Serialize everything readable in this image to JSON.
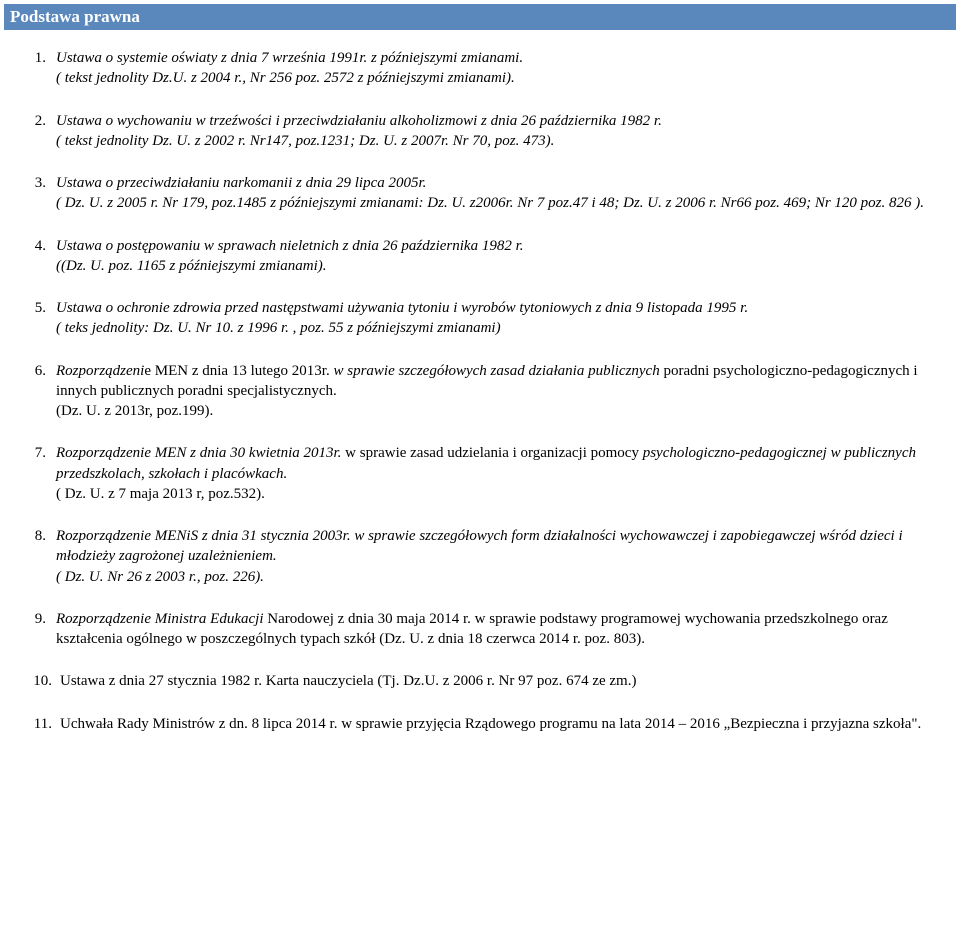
{
  "header": {
    "title": "Podstawa prawna",
    "bg_color": "#5a88bc",
    "text_color": "#ffffff"
  },
  "items": [
    {
      "num": "1.",
      "lines": [
        {
          "text": "Ustawa o systemie oświaty z dnia 7 września 1991r. z późniejszymi zmianami.",
          "italic": true
        },
        {
          "text": "( tekst jednolity Dz.U. z 2004 r., Nr 256 poz. 2572 z późniejszymi zmianami).",
          "italic": true
        }
      ]
    },
    {
      "num": "2.",
      "lines": [
        {
          "text": "Ustawa o wychowaniu w trzeźwości i przeciwdziałaniu alkoholizmowi z dnia 26 października 1982 r.",
          "italic": true
        },
        {
          "text": "( tekst jednolity Dz. U. z 2002 r. Nr147, poz.1231; Dz. U. z 2007r. Nr 70, poz. 473).",
          "italic": true
        }
      ]
    },
    {
      "num": "3.",
      "lines": [
        {
          "text": "Ustawa o przeciwdziałaniu narkomanii z dnia 29 lipca 2005r.",
          "italic": true
        },
        {
          "text": "( Dz. U. z 2005 r. Nr 179, poz.1485 z późniejszymi zmianami: Dz. U. z2006r. Nr 7 poz.47 i 48; Dz. U. z 2006 r. Nr66 poz. 469; Nr 120 poz. 826 ).",
          "italic": true
        }
      ]
    },
    {
      "num": "4.",
      "lines": [
        {
          "text": "Ustawa o postępowaniu w sprawach nieletnich z dnia 26 października 1982 r.",
          "italic": true
        },
        {
          "text": "((Dz. U. poz. 1165 z późniejszymi zmianami).",
          "italic": true
        }
      ]
    },
    {
      "num": "5.",
      "lines": [
        {
          "text": "Ustawa o ochronie zdrowia przed następstwami używania tytoniu i wyrobów tytoniowych z dnia 9 listopada 1995 r.",
          "italic": true
        },
        {
          "text": "( teks jednolity: Dz. U. Nr 10. z 1996 r. , poz. 55 z późniejszymi zmianami)",
          "italic": true
        }
      ]
    },
    {
      "num": "6.",
      "lines": [
        {
          "text": "Rozporządzenie MEN z dnia 13 lutego 2013r. w sprawie szczegółowych zasad działania publicznych poradni psychologiczno-pedagogicznych i innych publicznych poradni specjalistycznych.",
          "italic_first_part": "Rozporządzeni",
          "mix": true,
          "full": "Rozporządzenie MEN z dnia 13 lutego 2013r. w sprawie szczegółowych zasad działania publicznych poradni psychologiczno-pedagogicznych i innych publicznych poradni specjalistycznych."
        },
        {
          "text": "(Dz. U. z 2013r, poz.199).",
          "italic": false
        }
      ]
    },
    {
      "num": "7.",
      "lines": [
        {
          "text": "Rozporządzenie MEN z dnia 30 kwietnia 2013r. w sprawie zasad udzielania i organizacji pomocy psychologiczno-pedagogicznej w publicznych przedszkolach, szkołach i placówkach.",
          "italic_mix": true,
          "italic_part": "Rozporządzenie MEN z dnia 30 kwietnia 2013r.",
          "rest": " w sprawie zasad udzielania i organizacji pomocy psychologiczno-pedagogicznej w publicznych przedszkolach, szkołach i placówkach."
        },
        {
          "text": "( Dz. U. z 7 maja 2013 r, poz.532).",
          "italic": false
        }
      ]
    },
    {
      "num": "8.",
      "lines": [
        {
          "text": "Rozporządzenie MENiS z dnia 31 stycznia 2003r. w sprawie szczegółowych form działalności wychowawczej i zapobiegawczej wśród dzieci i młodzieży zagrożonej uzależnieniem.",
          "italic": true
        },
        {
          "text": "( Dz. U. Nr 26 z 2003 r., poz. 226).",
          "italic": true
        }
      ]
    },
    {
      "num": "9.",
      "lines": [
        {
          "text": "Rozporządzenie Ministra Edukacji Narodowej z dnia 30 maja 2014 r. w sprawie podstawy programowej wychowania przedszkolnego oraz kształcenia ogólnego w poszczególnych typach szkół (Dz. U. z dnia 18 czerwca 2014 r. poz. 803).",
          "italic_mix2": true,
          "italic_part": "Rozporządzenie Ministra Edukacji",
          "rest": " Narodowej z dnia 30 maja 2014 r. w sprawie podstawy programowej wychowania przedszkolnego oraz kształcenia ogólnego w poszczególnych typach szkół (Dz. U. z dnia 18 czerwca 2014 r. poz. 803)."
        }
      ]
    },
    {
      "num": "10.",
      "lines": [
        {
          "text": "Ustawa z dnia 27 stycznia 1982 r. Karta nauczyciela (Tj. Dz.U. z 2006 r. Nr 97 poz. 674 ze zm.)",
          "italic": false
        }
      ],
      "wide": true
    },
    {
      "num": "11.",
      "lines": [
        {
          "text": "Uchwała Rady Ministrów z dn. 8 lipca 2014 r. w sprawie przyjęcia Rządowego programu na lata 2014 – 2016 „Bezpieczna i przyjazna szkoła\".",
          "italic": false
        }
      ],
      "wide": true
    }
  ]
}
